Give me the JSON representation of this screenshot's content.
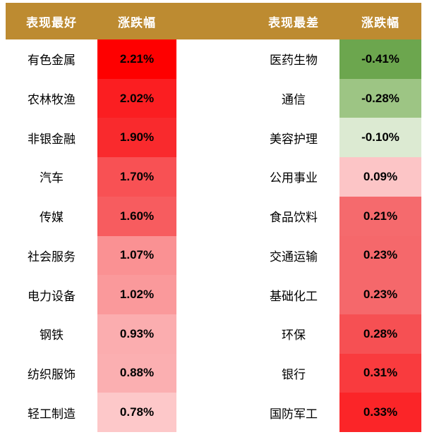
{
  "header": {
    "left_group_title": "表现最好",
    "left_change_title": "涨跌幅",
    "right_group_title": "表现最差",
    "right_change_title": "涨跌幅"
  },
  "colors": {
    "header_bg": "#BD8B31",
    "header_text": "#FFFFFF",
    "page_bg": "#FFFFFF",
    "value_text": "#000000",
    "label_text": "#000000"
  },
  "chart_data": {
    "type": "table",
    "subtype": "heatmap-table",
    "legend_note": "red = gain, green = loss",
    "tables": [
      {
        "title": "表现最好",
        "columns": [
          "表现最好",
          "涨跌幅"
        ],
        "rows": [
          {
            "label": "有色金属",
            "value": 2.21,
            "display": "2.21%",
            "cell_color": "#FE0000"
          },
          {
            "label": "农林牧渔",
            "value": 2.02,
            "display": "2.02%",
            "cell_color": "#FB1E21"
          },
          {
            "label": "非银金融",
            "value": 1.9,
            "display": "1.90%",
            "cell_color": "#F92A2D"
          },
          {
            "label": "汽车",
            "value": 1.7,
            "display": "1.70%",
            "cell_color": "#F85154"
          },
          {
            "label": "传媒",
            "value": 1.6,
            "display": "1.60%",
            "cell_color": "#F75C5F"
          },
          {
            "label": "社会服务",
            "value": 1.07,
            "display": "1.07%",
            "cell_color": "#FA9193"
          },
          {
            "label": "电力设备",
            "value": 1.02,
            "display": "1.02%",
            "cell_color": "#FA999B"
          },
          {
            "label": "钢铁",
            "value": 0.93,
            "display": "0.93%",
            "cell_color": "#FBADAF"
          },
          {
            "label": "纺织服饰",
            "value": 0.88,
            "display": "0.88%",
            "cell_color": "#FBAFB1"
          },
          {
            "label": "轻工制造",
            "value": 0.78,
            "display": "0.78%",
            "cell_color": "#FDC8C9"
          }
        ]
      },
      {
        "title": "表现最差",
        "columns": [
          "表现最差",
          "涨跌幅"
        ],
        "rows": [
          {
            "label": "医药生物",
            "value": -0.41,
            "display": "-0.41%",
            "cell_color": "#6CA64E"
          },
          {
            "label": "通信",
            "value": -0.28,
            "display": "-0.28%",
            "cell_color": "#9DC584"
          },
          {
            "label": "美容护理",
            "value": -0.1,
            "display": "-0.10%",
            "cell_color": "#DCEAD2"
          },
          {
            "label": "公用事业",
            "value": 0.09,
            "display": "0.09%",
            "cell_color": "#FCC5C6"
          },
          {
            "label": "食品饮料",
            "value": 0.21,
            "display": "0.21%",
            "cell_color": "#F56A6D"
          },
          {
            "label": "交通运输",
            "value": 0.23,
            "display": "0.23%",
            "cell_color": "#F5686B"
          },
          {
            "label": "基础化工",
            "value": 0.23,
            "display": "0.23%",
            "cell_color": "#F5686B"
          },
          {
            "label": "环保",
            "value": 0.28,
            "display": "0.28%",
            "cell_color": "#F65053"
          },
          {
            "label": "银行",
            "value": 0.31,
            "display": "0.31%",
            "cell_color": "#F93B3E"
          },
          {
            "label": "国防军工",
            "value": 0.33,
            "display": "0.33%",
            "cell_color": "#FB2528"
          }
        ]
      }
    ]
  }
}
